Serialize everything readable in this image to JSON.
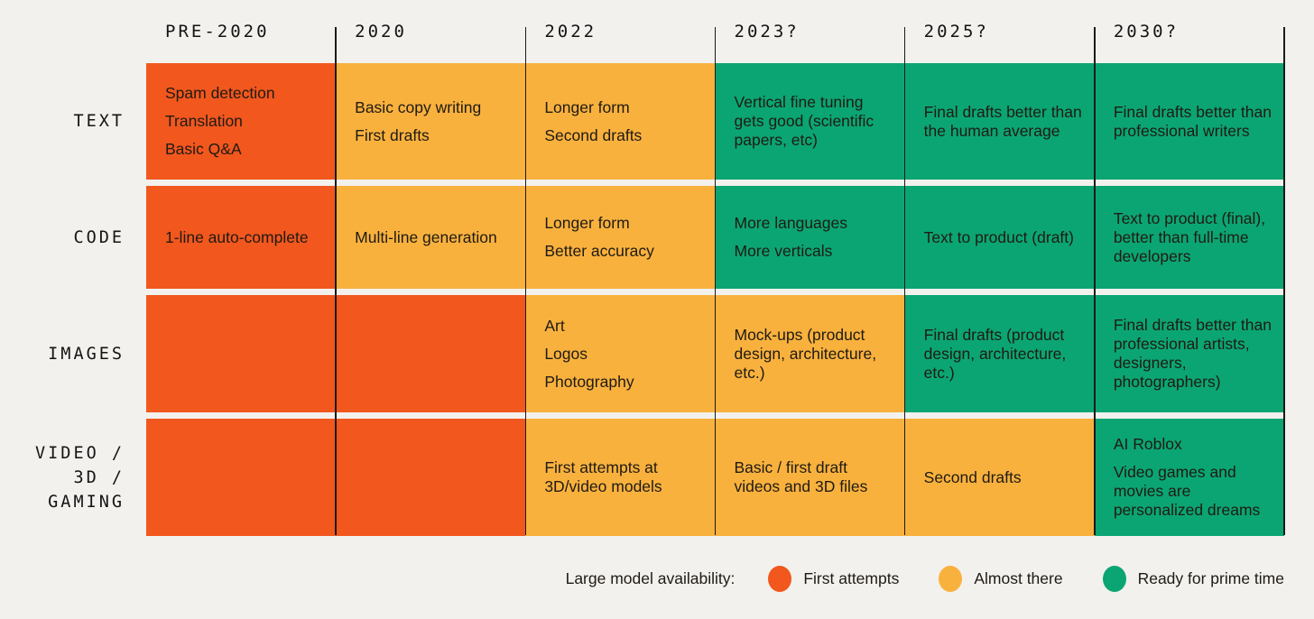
{
  "palette": {
    "background": "#F2F1EE",
    "grid_line": "#1A1A18",
    "text_dark": "#1F1B13",
    "first-attempts": "#F2571E",
    "almost-there": "#F9B13E",
    "ready-for-prime-time": "#0BA573"
  },
  "chart_data": {
    "type": "heatmap",
    "title": "",
    "columns": [
      "PRE-2020",
      "2020",
      "2022",
      "2023?",
      "2025?",
      "2030?"
    ],
    "status_levels": [
      "first-attempts",
      "almost-there",
      "ready-for-prime-time"
    ],
    "rows": [
      {
        "label": "TEXT",
        "label_lines": [
          "TEXT"
        ],
        "cells": [
          {
            "status": "first-attempts",
            "items": [
              "Spam detection",
              "Translation",
              "Basic Q&A"
            ]
          },
          {
            "status": "almost-there",
            "items": [
              "Basic copy writing",
              "First drafts"
            ]
          },
          {
            "status": "almost-there",
            "items": [
              "Longer form",
              "Second drafts"
            ]
          },
          {
            "status": "ready-for-prime-time",
            "items": [
              "Vertical fine tuning gets good (scientific papers, etc)"
            ]
          },
          {
            "status": "ready-for-prime-time",
            "items": [
              "Final drafts better than the human average"
            ]
          },
          {
            "status": "ready-for-prime-time",
            "items": [
              "Final drafts better than professional writers"
            ]
          }
        ]
      },
      {
        "label": "CODE",
        "label_lines": [
          "CODE"
        ],
        "cells": [
          {
            "status": "first-attempts",
            "items": [
              "1-line auto-complete"
            ]
          },
          {
            "status": "almost-there",
            "items": [
              "Multi-line generation"
            ]
          },
          {
            "status": "almost-there",
            "items": [
              "Longer form",
              "Better accuracy"
            ]
          },
          {
            "status": "ready-for-prime-time",
            "items": [
              "More languages",
              "More verticals"
            ]
          },
          {
            "status": "ready-for-prime-time",
            "items": [
              "Text to product (draft)"
            ]
          },
          {
            "status": "ready-for-prime-time",
            "items": [
              "Text to product (final), better than full-time developers"
            ]
          }
        ]
      },
      {
        "label": "IMAGES",
        "label_lines": [
          "IMAGES"
        ],
        "cells": [
          {
            "status": "first-attempts",
            "items": []
          },
          {
            "status": "first-attempts",
            "items": []
          },
          {
            "status": "almost-there",
            "items": [
              "Art",
              "Logos",
              "Photography"
            ]
          },
          {
            "status": "almost-there",
            "items": [
              "Mock-ups (product design, architecture, etc.)"
            ]
          },
          {
            "status": "ready-for-prime-time",
            "items": [
              "Final drafts (product design, architecture, etc.)"
            ]
          },
          {
            "status": "ready-for-prime-time",
            "items": [
              "Final drafts better than professional artists, designers, photographers)"
            ]
          }
        ]
      },
      {
        "label": "VIDEO / 3D / GAMING",
        "label_lines": [
          "VIDEO /",
          "3D /",
          "GAMING"
        ],
        "cells": [
          {
            "status": "first-attempts",
            "items": []
          },
          {
            "status": "first-attempts",
            "items": []
          },
          {
            "status": "almost-there",
            "items": [
              "First attempts at 3D/video models"
            ]
          },
          {
            "status": "almost-there",
            "items": [
              "Basic / first draft videos and 3D files"
            ]
          },
          {
            "status": "almost-there",
            "items": [
              "Second drafts"
            ]
          },
          {
            "status": "ready-for-prime-time",
            "items": [
              "AI Roblox",
              "Video games and movies are personalized dreams"
            ]
          }
        ]
      }
    ],
    "legend": {
      "label": "Large model availability:",
      "entries": [
        {
          "label": "First attempts",
          "status": "first-attempts"
        },
        {
          "label": "Almost there",
          "status": "almost-there"
        },
        {
          "label": "Ready for prime time",
          "status": "ready-for-prime-time"
        }
      ],
      "position": "bottom-right"
    },
    "layout_hints": {
      "grid": "6 columns x 4 rows",
      "column_separators": true,
      "row_gaps": true
    }
  }
}
